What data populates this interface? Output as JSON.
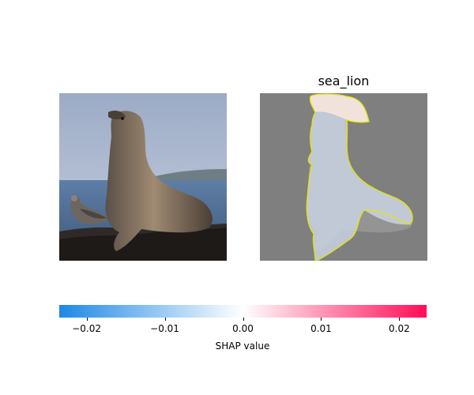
{
  "explanation": {
    "class_label": "sea_lion"
  },
  "colorbar": {
    "label": "SHAP value",
    "min": -0.0235,
    "max": 0.0235,
    "colors": {
      "negative": "#1e88e5",
      "zero": "#ffffff",
      "positive": "#ff0d57"
    },
    "ticks": [
      {
        "value": -0.02,
        "label": "−0.02"
      },
      {
        "value": -0.01,
        "label": "−0.01"
      },
      {
        "value": 0.0,
        "label": "0.00"
      },
      {
        "value": 0.01,
        "label": "0.01"
      },
      {
        "value": 0.02,
        "label": "0.02"
      }
    ]
  }
}
